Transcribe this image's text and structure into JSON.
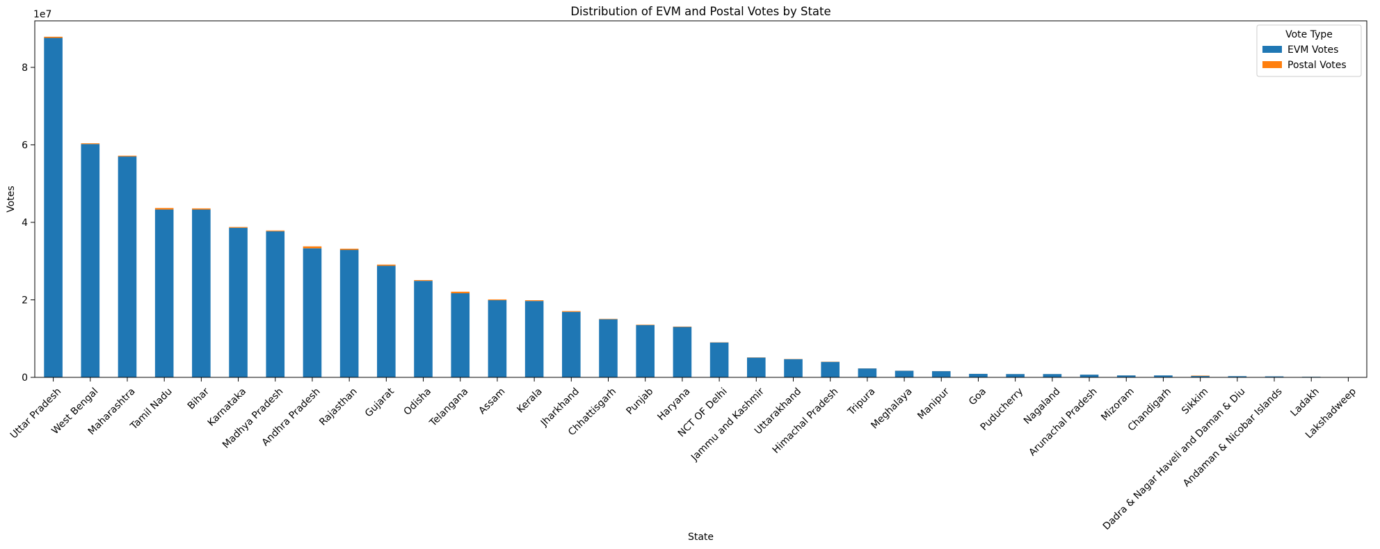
{
  "chart_data": {
    "type": "bar",
    "stacked": true,
    "title": "Distribution of EVM and Postal Votes by State",
    "xlabel": "State",
    "ylabel": "Votes",
    "y_offset_label": "1e7",
    "ylim": [
      0,
      92000000
    ],
    "yticks": [
      0,
      20000000,
      40000000,
      60000000,
      80000000
    ],
    "ytick_labels": [
      "0",
      "2",
      "4",
      "6",
      "8"
    ],
    "grid": false,
    "legend_title": "Vote Type",
    "legend_position": "top-right",
    "categories": [
      "Uttar Pradesh",
      "West Bengal",
      "Maharashtra",
      "Tamil Nadu",
      "Bihar",
      "Karnataka",
      "Madhya Pradesh",
      "Andhra Pradesh",
      "Rajasthan",
      "Gujarat",
      "Odisha",
      "Telangana",
      "Assam",
      "Kerala",
      "Jharkhand",
      "Chhattisgarh",
      "Punjab",
      "Haryana",
      "NCT OF Delhi",
      "Jammu and Kashmir",
      "Uttarakhand",
      "Himachal Pradesh",
      "Tripura",
      "Meghalaya",
      "Manipur",
      "Goa",
      "Puducherry",
      "Nagaland",
      "Arunachal Pradesh",
      "Mizoram",
      "Chandigarh",
      "Sikkim",
      "Dadra & Nagar Haveli and Daman & Diu",
      "Andaman & Nicobar Islands",
      "Ladakh",
      "Lakshadweep"
    ],
    "series": [
      {
        "name": "EVM Votes",
        "color": "#1f77b4",
        "values": [
          87600000,
          60200000,
          57000000,
          43300000,
          43300000,
          38600000,
          37700000,
          33300000,
          32900000,
          28800000,
          24900000,
          21700000,
          19900000,
          19700000,
          16900000,
          15000000,
          13500000,
          13000000,
          9000000,
          5100000,
          4700000,
          4000000,
          2300000,
          1700000,
          1600000,
          900000,
          850000,
          850000,
          700000,
          500000,
          500000,
          350000,
          300000,
          250000,
          150000,
          50000
        ]
      },
      {
        "name": "Postal Votes",
        "color": "#ff7f0e",
        "values": [
          300000,
          200000,
          200000,
          400000,
          300000,
          200000,
          200000,
          500000,
          300000,
          300000,
          200000,
          400000,
          200000,
          200000,
          200000,
          100000,
          100000,
          100000,
          50000,
          50000,
          50000,
          50000,
          20000,
          20000,
          20000,
          10000,
          10000,
          10000,
          10000,
          10000,
          5000,
          100000,
          5000,
          5000,
          5000,
          1000
        ]
      }
    ]
  }
}
